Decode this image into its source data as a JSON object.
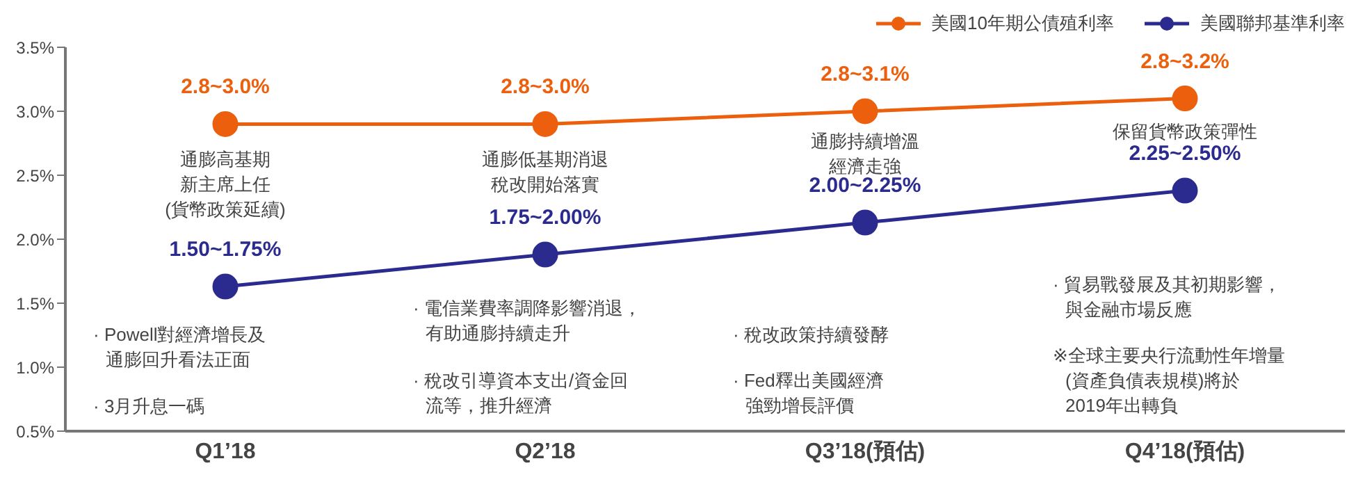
{
  "chart_data": {
    "type": "line",
    "categories": [
      "Q1’18",
      "Q2’18",
      "Q3’18(預估)",
      "Q4’18(預估)"
    ],
    "series": [
      {
        "name": "美國10年期公債殖利率",
        "color": "#ec5f0c",
        "values": [
          2.9,
          2.9,
          3.0,
          3.1
        ]
      },
      {
        "name": "美國聯邦基準利率",
        "color": "#2b2b8f",
        "values": [
          1.63,
          1.88,
          2.13,
          2.38
        ]
      }
    ],
    "ylim": [
      0.5,
      3.5
    ],
    "yticks": [
      {
        "value": 0.5,
        "label": "0.5%"
      },
      {
        "value": 1.0,
        "label": "1.0%"
      },
      {
        "value": 1.5,
        "label": "1.5%"
      },
      {
        "value": 2.0,
        "label": "2.0%"
      },
      {
        "value": 2.5,
        "label": "2.5%"
      },
      {
        "value": 3.0,
        "label": "3.0%"
      },
      {
        "value": 3.5,
        "label": "3.5%"
      }
    ],
    "grid": false,
    "legend": "top right",
    "marker": "circle",
    "line_style": "solid",
    "annotations": [
      "通膨高基期新主席上任(貨幣政策延續)",
      "通膨低基期消退稅改開始落實",
      "通膨持續增溫經濟走強",
      "保留貨幣政策彈性",
      "· Powell對經濟增長及通膨回升看法正面",
      "· 3月升息一碼",
      "· 電信業費率調降影響消退，有助通膨持續走升",
      "· 稅改引導資本支出/資金回流等，推升經濟",
      "· 稅改政策持續發酵",
      "· Fed釋出美國經濟強勁增長評價",
      "· 貿易戰發展及其初期影響，與金融市場反應",
      "※全球主要央行流動性年增量(資產負債表規模)將於2019年出轉負",
      "2.8~3.0%",
      "2.8~3.0%",
      "2.8~3.1%",
      "2.8~3.2%",
      "1.50~1.75%",
      "1.75~2.00%",
      "2.00~2.25%",
      "2.25~2.50%"
    ]
  }
}
